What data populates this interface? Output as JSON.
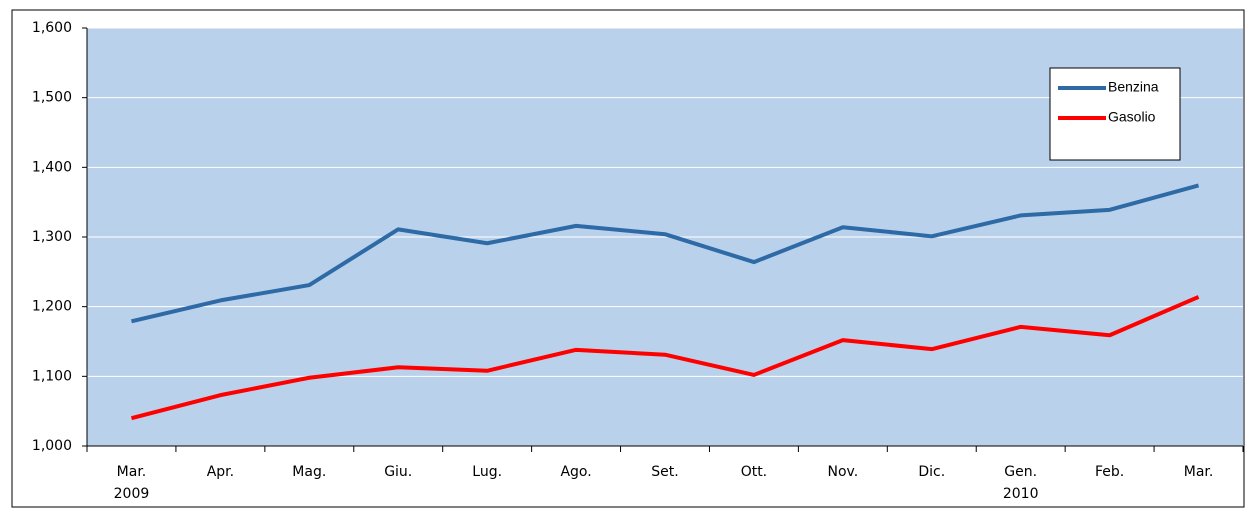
{
  "chart_data": {
    "type": "line",
    "categories": [
      [
        "Mar.",
        "2009"
      ],
      [
        "Apr."
      ],
      [
        "Mag."
      ],
      [
        "Giu."
      ],
      [
        "Lug."
      ],
      [
        "Ago."
      ],
      [
        "Set."
      ],
      [
        "Ott."
      ],
      [
        "Nov."
      ],
      [
        "Dic."
      ],
      [
        "Gen.",
        "2010"
      ],
      [
        "Feb."
      ],
      [
        "Mar."
      ]
    ],
    "series": [
      {
        "name": "Benzina",
        "color": "#2e6aa6",
        "values": [
          1179,
          1209,
          1231,
          1311,
          1291,
          1316,
          1304,
          1264,
          1314,
          1301,
          1331,
          1339,
          1374
        ]
      },
      {
        "name": "Gasolio",
        "color": "#ff0000",
        "values": [
          1040,
          1073,
          1098,
          1113,
          1108,
          1138,
          1131,
          1102,
          1152,
          1139,
          1171,
          1159,
          1214
        ]
      }
    ],
    "ylim": [
      1000,
      1600
    ],
    "yticks": [
      {
        "value": 1000,
        "label": "1,000"
      },
      {
        "value": 1100,
        "label": "1,100"
      },
      {
        "value": 1200,
        "label": "1,200"
      },
      {
        "value": 1300,
        "label": "1,300"
      },
      {
        "value": 1400,
        "label": "1,400"
      },
      {
        "value": 1500,
        "label": "1,500"
      },
      {
        "value": 1600,
        "label": "1,600"
      }
    ],
    "grid": true,
    "legend": "upper right",
    "plot_background": "#b9d1ea"
  }
}
